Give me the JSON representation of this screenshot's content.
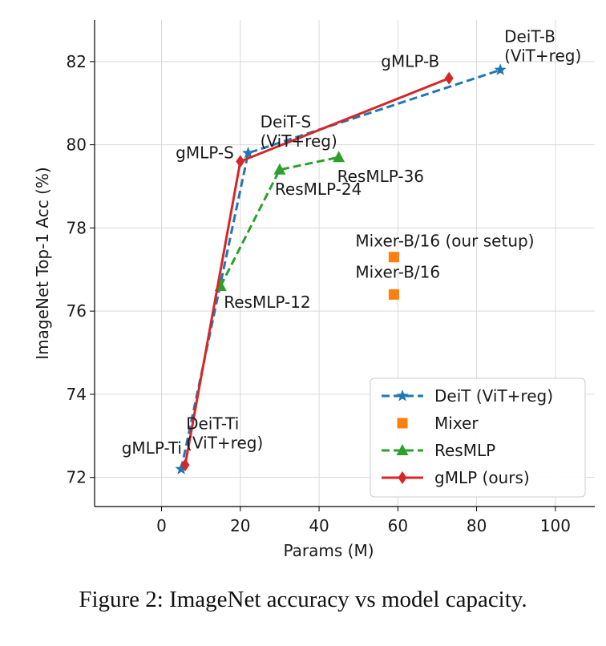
{
  "caption": "Figure 2: ImageNet accuracy vs model capacity.",
  "chart_data": {
    "type": "line",
    "xlabel": "Params (M)",
    "ylabel": "ImageNet Top-1 Acc (%)",
    "xlim": [
      -17,
      110
    ],
    "ylim": [
      71.3,
      83.0
    ],
    "xticks": [
      0,
      20,
      40,
      60,
      80,
      100
    ],
    "yticks": [
      72,
      74,
      76,
      78,
      80,
      82
    ],
    "grid": true,
    "legend_position": "bottom-right",
    "series": [
      {
        "name": "DeiT (ViT+reg)",
        "color": "#1f77b4",
        "marker": "star",
        "dash": true,
        "points": [
          [
            5,
            72.2
          ],
          [
            22,
            79.8
          ],
          [
            86,
            81.8
          ]
        ],
        "labels": [
          "DeiT-Ti\n(ViT+reg)",
          "DeiT-S\n(ViT+reg)",
          "DeiT-B\n(ViT+reg)"
        ]
      },
      {
        "name": "Mixer",
        "color": "#ff7f0e",
        "marker": "square",
        "dash": false,
        "noline": true,
        "points": [
          [
            59,
            76.4
          ],
          [
            59,
            77.3
          ]
        ],
        "labels": [
          "Mixer-B/16",
          "Mixer-B/16 (our setup)"
        ]
      },
      {
        "name": "ResMLP",
        "color": "#2ca02c",
        "marker": "triangle",
        "dash": true,
        "points": [
          [
            15,
            76.6
          ],
          [
            30,
            79.4
          ],
          [
            45,
            79.7
          ]
        ],
        "labels": [
          "ResMLP-12",
          "ResMLP-24",
          "ResMLP-36"
        ]
      },
      {
        "name": "gMLP (ours)",
        "color": "#d62728",
        "marker": "diamond",
        "dash": false,
        "points": [
          [
            6,
            72.3
          ],
          [
            20,
            79.6
          ],
          [
            73,
            81.6
          ]
        ],
        "labels": [
          "gMLP-Ti",
          "gMLP-S",
          "gMLP-B"
        ]
      }
    ]
  }
}
